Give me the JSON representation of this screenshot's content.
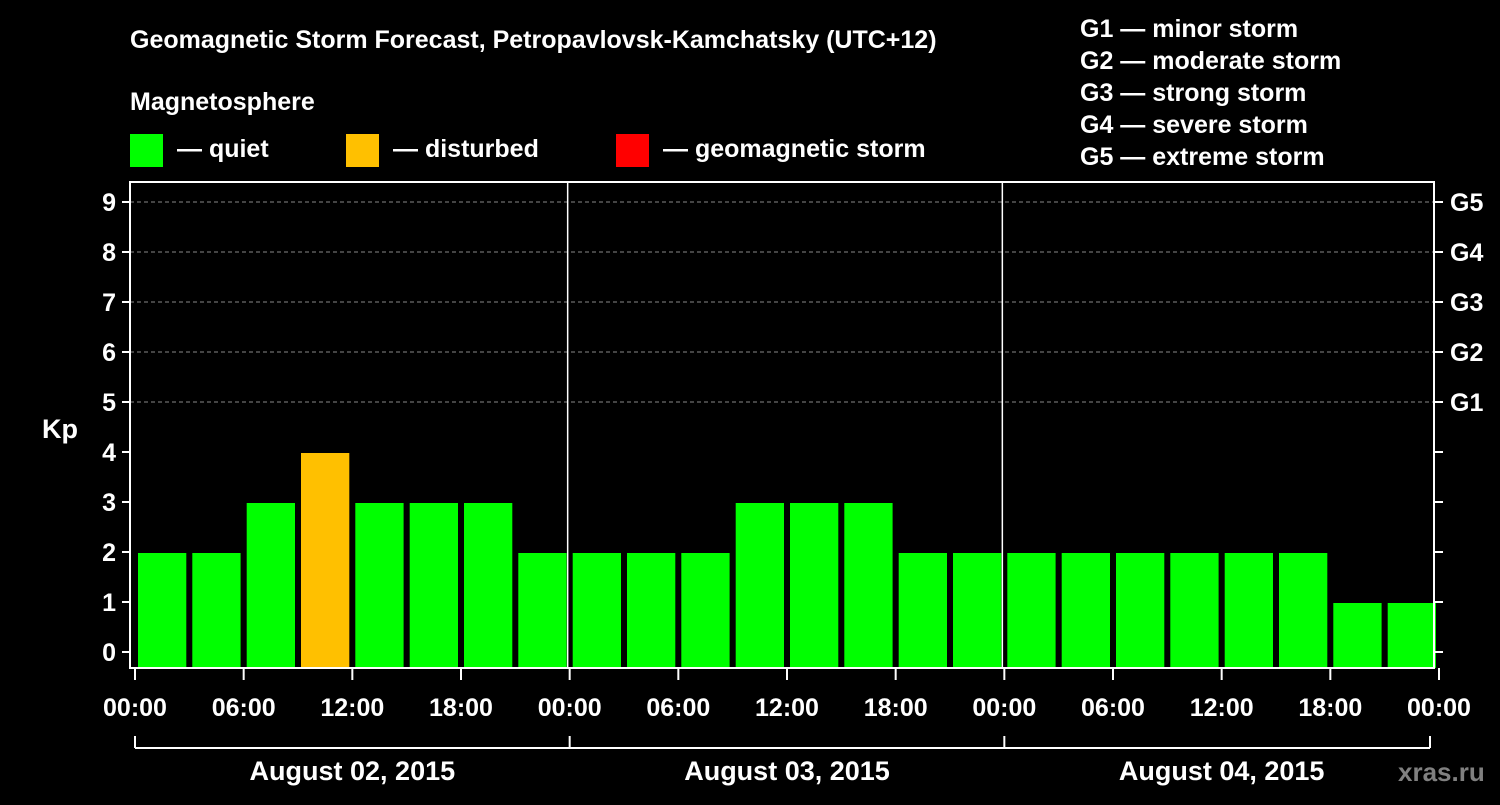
{
  "chart_data": {
    "type": "bar",
    "title": "Geomagnetic Storm Forecast, Petropavlovsk-Kamchatsky (UTC+12)",
    "ylabel": "Kp",
    "ylim": [
      0,
      9
    ],
    "yticks": [
      "0",
      "1",
      "2",
      "3",
      "4",
      "5",
      "6",
      "7",
      "8",
      "9"
    ],
    "right_axis_labels": [
      {
        "kp": 5,
        "label": "G1"
      },
      {
        "kp": 6,
        "label": "G2"
      },
      {
        "kp": 7,
        "label": "G3"
      },
      {
        "kp": 8,
        "label": "G4"
      },
      {
        "kp": 9,
        "label": "G5"
      }
    ],
    "xtick_labels": [
      "00:00",
      "06:00",
      "12:00",
      "18:00",
      "00:00",
      "06:00",
      "12:00",
      "18:00",
      "00:00",
      "06:00",
      "12:00",
      "18:00",
      "00:00"
    ],
    "days": [
      "August 02, 2015",
      "August 03, 2015",
      "August 04, 2015"
    ],
    "values": [
      2,
      2,
      3,
      4,
      3,
      3,
      3,
      2,
      2,
      2,
      2,
      3,
      3,
      3,
      2,
      2,
      2,
      2,
      2,
      2,
      2,
      2,
      1,
      1
    ],
    "level_colors": {
      "quiet": "#00ff00",
      "disturbed": "#ffc000",
      "storm": "#ff0000"
    },
    "legend": {
      "title": "Magnetosphere",
      "items": [
        {
          "label": "— quiet",
          "color": "#00ff00"
        },
        {
          "label": "— disturbed",
          "color": "#ffc000"
        },
        {
          "label": "— geomagnetic storm",
          "color": "#ff0000"
        }
      ]
    },
    "scale_legend": [
      "G1 — minor storm",
      "G2 — moderate storm",
      "G3 — strong storm",
      "G4 — severe storm",
      "G5 — extreme storm"
    ],
    "watermark": "xras.ru"
  }
}
